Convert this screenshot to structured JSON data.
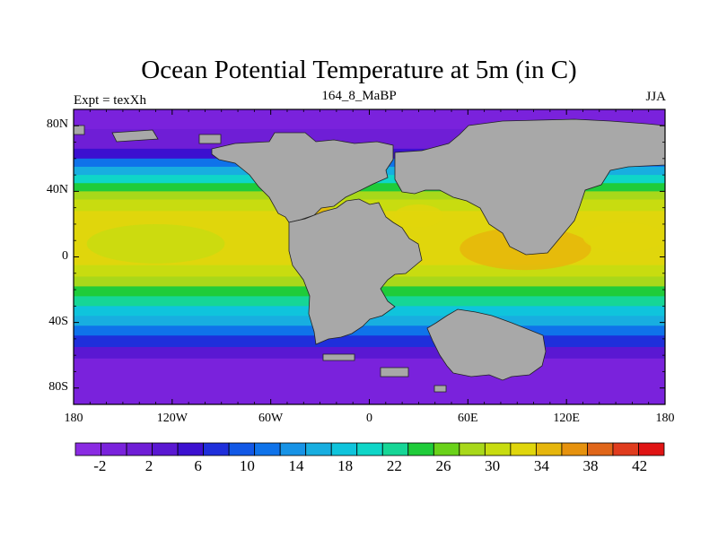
{
  "title": "Ocean Potential Temperature at 5m (in C)",
  "left_label": "Expt = texXh",
  "center_label": "164_8_MaBP",
  "right_label": "JJA",
  "colors": {
    "land": "#a8a8a8",
    "frame": "#000000",
    "palette": [
      "#8a2be2",
      "#7a22dc",
      "#6f1ed6",
      "#5a18d2",
      "#3c10d0",
      "#1f2fdb",
      "#1258e6",
      "#0f73ea",
      "#1793e6",
      "#18aee0",
      "#0fc4dc",
      "#0fd6c8",
      "#16d696",
      "#1fcc3a",
      "#6ad21a",
      "#a8d81a",
      "#c8dc10",
      "#e0d60c",
      "#e6b60c",
      "#e6920e",
      "#e0661a",
      "#e03c1e",
      "#e01414"
    ]
  },
  "chart_data": {
    "type": "heatmap",
    "title": "Ocean Potential Temperature at 5m (in C)",
    "subtitle": "164_8_MaBP",
    "experiment": "Expt = texXh",
    "season": "JJA",
    "x_ticks": [
      "180",
      "120W",
      "60W",
      "0",
      "60E",
      "120E",
      "180"
    ],
    "x_tick_values": [
      -180,
      -120,
      -60,
      0,
      60,
      120,
      180
    ],
    "y_ticks": [
      "80N",
      "40N",
      "0",
      "40S",
      "80S"
    ],
    "y_tick_values": [
      80,
      40,
      0,
      -40,
      -80
    ],
    "xlim": [
      -180,
      180
    ],
    "ylim": [
      -90,
      90
    ],
    "colorbar_labels": [
      "-2",
      "2",
      "6",
      "10",
      "14",
      "18",
      "22",
      "26",
      "30",
      "34",
      "38",
      "42"
    ],
    "colorbar_range": [
      -4,
      44
    ],
    "colorbar_step": 2
  }
}
